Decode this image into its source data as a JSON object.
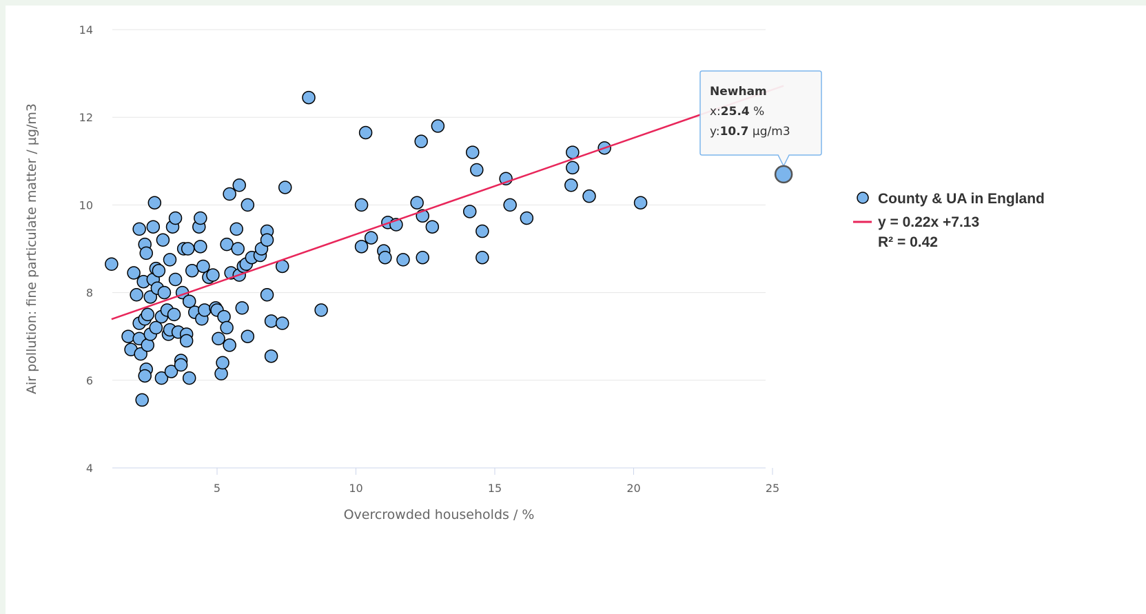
{
  "chart_data": {
    "type": "scatter",
    "xlabel": "Overcrowded households / %",
    "ylabel": "Air pollution: fine particulate matter / µg/m3",
    "xlim": [
      1,
      26
    ],
    "ylim": [
      4,
      14
    ],
    "x_ticks": [
      5,
      10,
      15,
      20,
      25
    ],
    "y_ticks": [
      4,
      6,
      8,
      10,
      12,
      14
    ],
    "grid": "horizontal",
    "legend_placement": "right",
    "colors": {
      "points": "#7cb5ec",
      "point_border": "#000000",
      "trendline": "#e8265a"
    },
    "series": [
      {
        "name": "County & UA in England",
        "marker": "circle",
        "points": [
          [
            1.2,
            8.65
          ],
          [
            1.8,
            7.0
          ],
          [
            1.9,
            6.7
          ],
          [
            2.0,
            8.45
          ],
          [
            2.1,
            7.95
          ],
          [
            2.2,
            9.45
          ],
          [
            2.2,
            7.3
          ],
          [
            2.25,
            6.6
          ],
          [
            2.2,
            6.95
          ],
          [
            2.3,
            5.55
          ],
          [
            2.35,
            8.25
          ],
          [
            2.4,
            9.1
          ],
          [
            2.45,
            8.9
          ],
          [
            2.4,
            7.4
          ],
          [
            2.5,
            7.5
          ],
          [
            2.5,
            6.8
          ],
          [
            2.45,
            6.25
          ],
          [
            2.4,
            6.1
          ],
          [
            2.6,
            7.05
          ],
          [
            2.6,
            7.9
          ],
          [
            2.7,
            9.5
          ],
          [
            2.7,
            8.3
          ],
          [
            2.75,
            10.05
          ],
          [
            2.8,
            8.55
          ],
          [
            2.85,
            8.1
          ],
          [
            2.8,
            7.2
          ],
          [
            2.9,
            8.5
          ],
          [
            3.0,
            7.45
          ],
          [
            3.0,
            6.05
          ],
          [
            3.05,
            9.2
          ],
          [
            3.1,
            8.0
          ],
          [
            3.2,
            7.6
          ],
          [
            3.25,
            7.05
          ],
          [
            3.3,
            8.75
          ],
          [
            3.3,
            7.15
          ],
          [
            3.35,
            6.2
          ],
          [
            3.4,
            9.5
          ],
          [
            3.45,
            7.5
          ],
          [
            3.5,
            9.7
          ],
          [
            3.5,
            8.3
          ],
          [
            3.6,
            7.1
          ],
          [
            3.7,
            6.45
          ],
          [
            3.7,
            6.35
          ],
          [
            3.75,
            8.0
          ],
          [
            3.8,
            9.0
          ],
          [
            3.9,
            7.05
          ],
          [
            3.9,
            6.9
          ],
          [
            3.95,
            9.0
          ],
          [
            4.0,
            6.05
          ],
          [
            4.0,
            7.8
          ],
          [
            4.1,
            8.5
          ],
          [
            4.2,
            7.55
          ],
          [
            4.35,
            9.5
          ],
          [
            4.4,
            9.7
          ],
          [
            4.4,
            9.05
          ],
          [
            4.45,
            7.4
          ],
          [
            4.5,
            8.6
          ],
          [
            4.55,
            7.6
          ],
          [
            4.7,
            8.35
          ],
          [
            4.85,
            8.4
          ],
          [
            4.95,
            7.65
          ],
          [
            5.0,
            7.6
          ],
          [
            5.05,
            6.95
          ],
          [
            5.15,
            6.15
          ],
          [
            5.2,
            6.4
          ],
          [
            5.25,
            7.45
          ],
          [
            5.35,
            7.2
          ],
          [
            5.35,
            9.1
          ],
          [
            5.45,
            6.8
          ],
          [
            5.45,
            10.25
          ],
          [
            5.5,
            8.45
          ],
          [
            5.7,
            9.45
          ],
          [
            5.75,
            9.0
          ],
          [
            5.8,
            10.45
          ],
          [
            5.8,
            8.4
          ],
          [
            5.95,
            8.6
          ],
          [
            5.9,
            7.65
          ],
          [
            6.05,
            8.65
          ],
          [
            6.1,
            7.0
          ],
          [
            6.1,
            10.0
          ],
          [
            6.25,
            8.8
          ],
          [
            6.55,
            8.85
          ],
          [
            6.6,
            9.0
          ],
          [
            6.8,
            9.4
          ],
          [
            6.8,
            9.2
          ],
          [
            6.8,
            7.95
          ],
          [
            6.95,
            7.35
          ],
          [
            6.95,
            6.55
          ],
          [
            7.35,
            8.6
          ],
          [
            7.35,
            7.3
          ],
          [
            7.45,
            10.4
          ],
          [
            8.3,
            12.45
          ],
          [
            8.75,
            7.6
          ],
          [
            10.2,
            10.0
          ],
          [
            10.2,
            9.05
          ],
          [
            10.35,
            11.65
          ],
          [
            10.55,
            9.25
          ],
          [
            11.0,
            8.95
          ],
          [
            11.05,
            8.8
          ],
          [
            11.15,
            9.6
          ],
          [
            11.45,
            9.55
          ],
          [
            11.7,
            8.75
          ],
          [
            12.2,
            10.05
          ],
          [
            12.35,
            11.45
          ],
          [
            12.4,
            9.75
          ],
          [
            12.4,
            8.8
          ],
          [
            12.75,
            9.5
          ],
          [
            12.95,
            11.8
          ],
          [
            14.1,
            9.85
          ],
          [
            14.2,
            11.2
          ],
          [
            14.35,
            10.8
          ],
          [
            14.55,
            9.4
          ],
          [
            14.55,
            8.8
          ],
          [
            15.4,
            10.6
          ],
          [
            15.55,
            10.0
          ],
          [
            16.15,
            9.7
          ],
          [
            17.8,
            11.2
          ],
          [
            17.8,
            10.85
          ],
          [
            17.75,
            10.45
          ],
          [
            18.4,
            10.2
          ],
          [
            18.95,
            11.3
          ],
          [
            20.25,
            10.05
          ],
          [
            25.4,
            10.7
          ]
        ]
      }
    ],
    "trendline": {
      "equation": "y = 0.22x +7.13",
      "r_squared": "R² = 0.42",
      "slope": 0.22,
      "intercept": 7.13,
      "x_range": [
        1.2,
        25.4
      ]
    },
    "tooltip": {
      "name": "Newham",
      "x_prefix": "x:",
      "x_value": "25.4",
      "x_unit": " %",
      "y_prefix": "y:",
      "y_value": "10.7",
      "y_unit": " µg/m3"
    },
    "highlighted_point": [
      25.4,
      10.7
    ]
  }
}
